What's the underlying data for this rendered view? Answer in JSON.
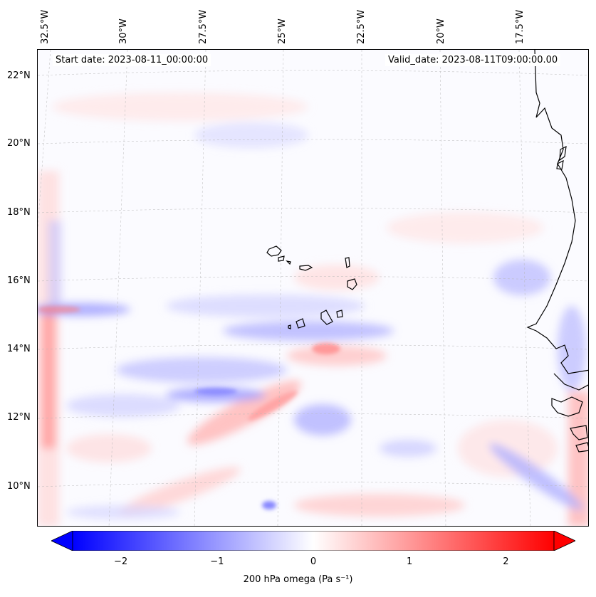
{
  "map": {
    "title_left": "Start date: 2023-08-11_00:00:00",
    "title_right": "Valid_date: 2023-08-11T09:00:00.00",
    "lon_labels": [
      "32.5°W",
      "30°W",
      "27.5°W",
      "25°W",
      "22.5°W",
      "20°W",
      "17.5°W"
    ],
    "lat_labels": [
      "22°N",
      "20°N",
      "18°N",
      "16°N",
      "14°N",
      "12°N",
      "10°N"
    ],
    "extent": {
      "lon_min": -32.5,
      "lon_max": -15.5,
      "lat_min": 8.8,
      "lat_max": 22.8
    },
    "field": "200 hPa omega",
    "features": [
      "West African coastline",
      "Cape Verde islands"
    ]
  },
  "colorbar": {
    "label": "200 hPa omega (Pa s⁻¹)",
    "ticks": [
      "−2",
      "−1",
      "0",
      "1",
      "2"
    ],
    "tick_values": [
      -2,
      -1,
      0,
      1,
      2
    ],
    "vmin": -2.5,
    "vmax": 2.5,
    "colors": {
      "min": "#0000ff",
      "mid": "#ffffff",
      "max": "#ff0000"
    }
  }
}
